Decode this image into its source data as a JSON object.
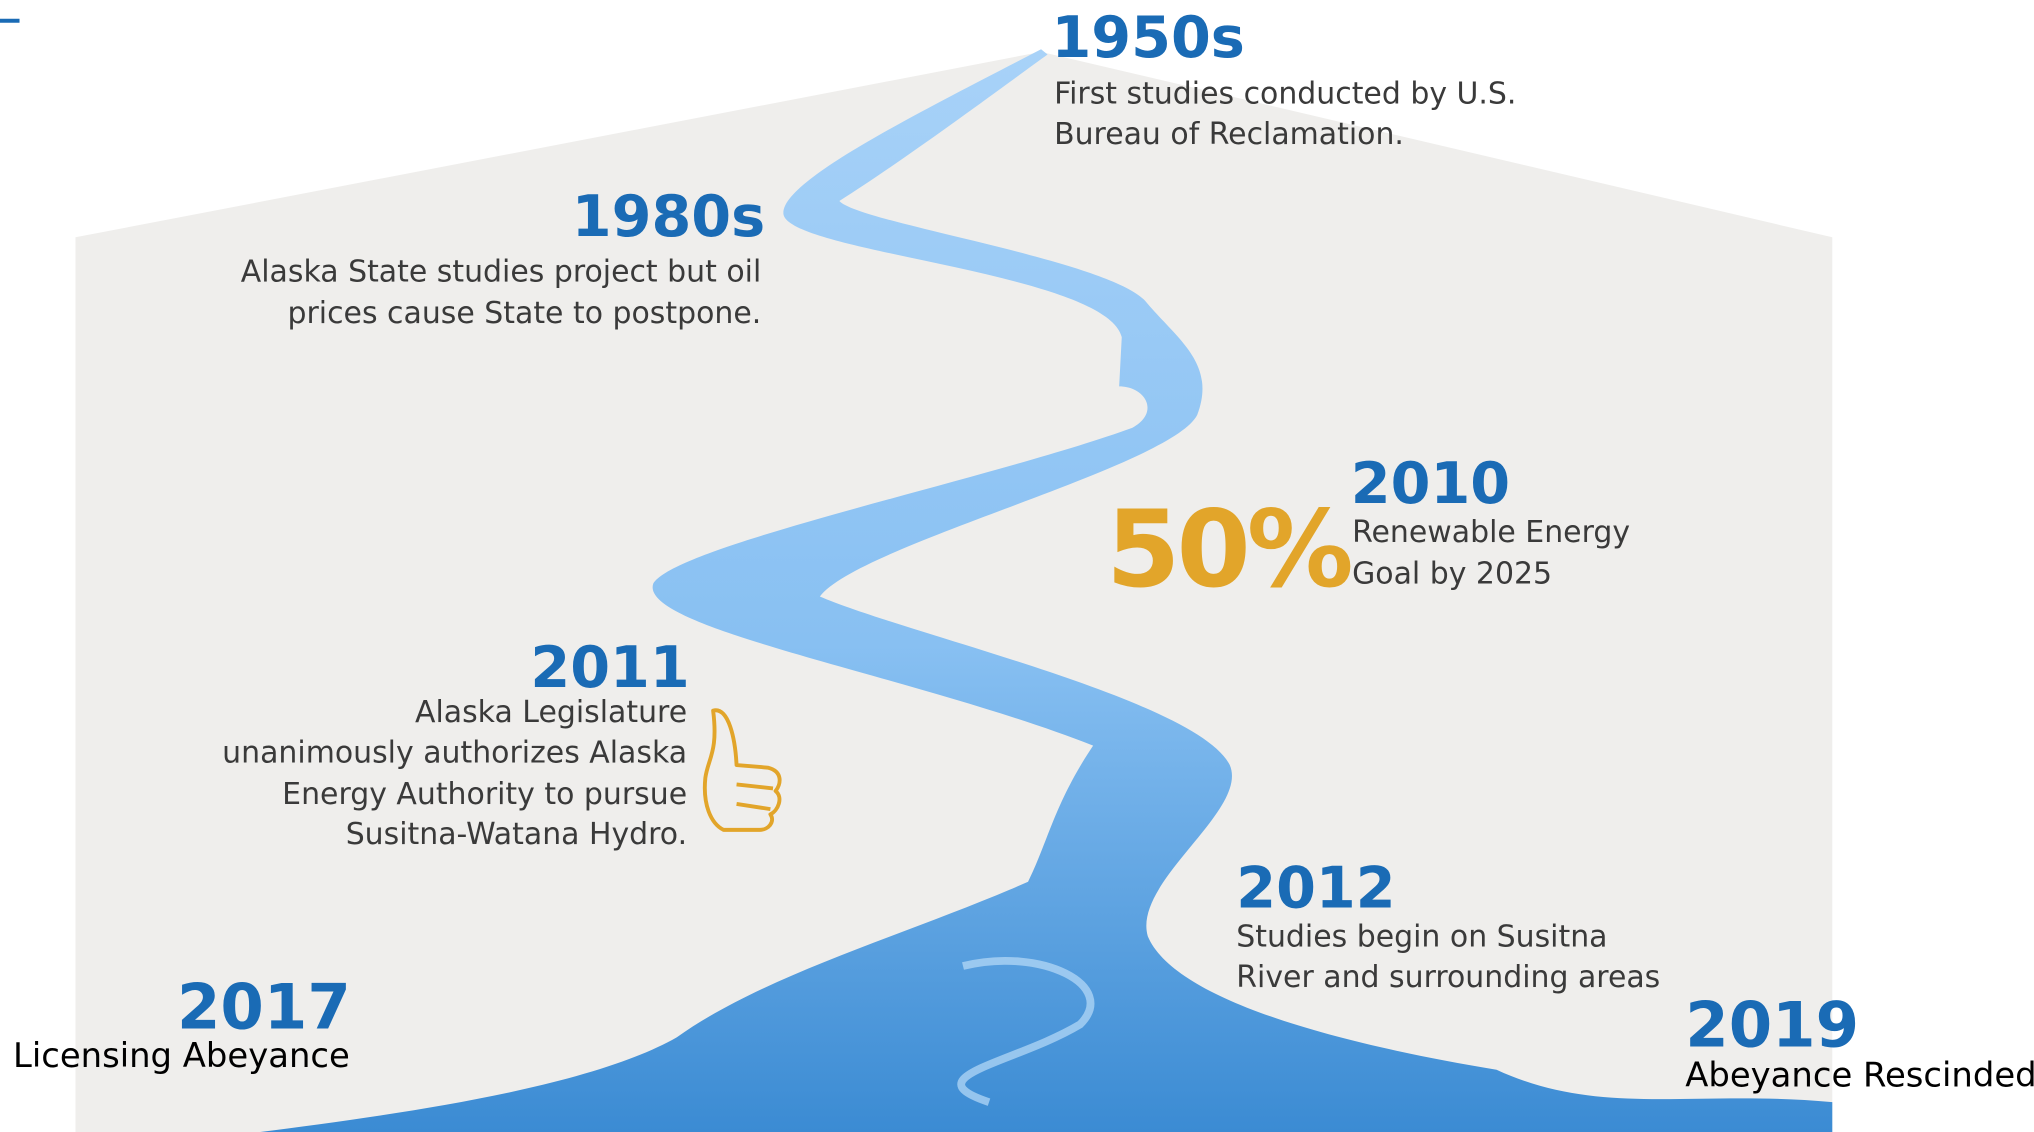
{
  "events": [
    {
      "year": "1950s",
      "lines": [
        "First studies conducted by U.S.",
        "Bureau of Reclamation."
      ]
    },
    {
      "year": "1980s",
      "lines": [
        "Alaska State studies project but oil",
        "prices cause State to postpone."
      ]
    },
    {
      "year": "2010",
      "lines": [
        "Renewable Energy",
        "Goal by 2025"
      ]
    },
    {
      "year": "2011",
      "lines": [
        "Alaska Legislature",
        "unanimously authorizes Alaska",
        "Energy Authority to pursue",
        "Susitna-Watana Hydro."
      ]
    },
    {
      "year": "2012",
      "lines": [
        "Studies begin on Susitna",
        "River and surrounding areas"
      ]
    },
    {
      "year": "2017",
      "lines": [
        "Licensing Abeyance"
      ]
    },
    {
      "year": "2019",
      "lines": [
        "Abeyance Rescinded"
      ]
    }
  ],
  "badge": "50%"
}
